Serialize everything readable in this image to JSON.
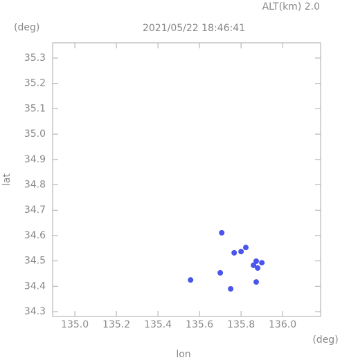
{
  "chart_data": {
    "type": "scatter",
    "title": "2021/05/22 18:46:41",
    "subtitle": "ALT(km) 2.0",
    "y_unit": "(deg)",
    "x_unit": "(deg)",
    "x_label": "lon",
    "y_label": "lat",
    "series": [
      {
        "name": null,
        "color": "#4a55ee",
        "x": [
          135.873,
          135.9,
          135.88,
          135.86,
          135.823,
          135.8,
          135.767,
          135.557,
          135.7,
          135.873,
          135.707,
          135.75
        ],
        "y": [
          34.499,
          34.493,
          34.472,
          34.483,
          34.553,
          34.537,
          34.532,
          34.425,
          34.453,
          34.417,
          34.611,
          34.39
        ]
      }
    ],
    "xlim": [
      134.893,
      136.183
    ],
    "ylim": [
      34.281,
      35.36
    ],
    "xticks": [
      {
        "value": 135,
        "label": "135.0"
      },
      135.2,
      135.4,
      135.6,
      135.8,
      {
        "value": 136,
        "label": "136.0"
      }
    ],
    "yticks": [
      34.3,
      34.4,
      34.5,
      34.6,
      34.7,
      34.8,
      34.9,
      {
        "value": 35,
        "label": "35.0"
      },
      35.1,
      35.2,
      35.3
    ]
  }
}
